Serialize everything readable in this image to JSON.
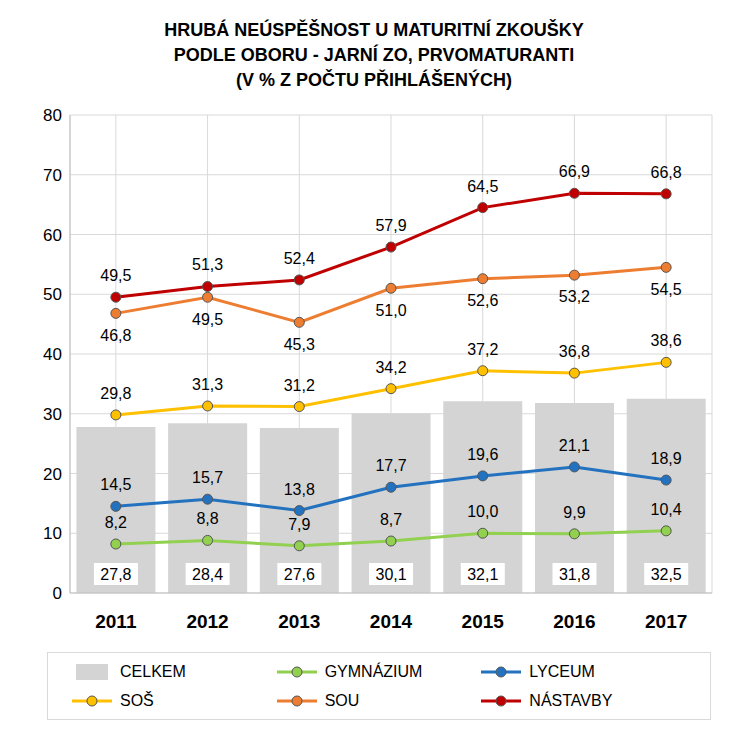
{
  "chart_data": {
    "type": "bar",
    "title": "HRUBÁ NEÚSPĚŠNOST U MATURITNÍ ZKOUŠKY\nPODLE OBORU - JARNÍ ZO, PRVOMATURANTI\n(V % Z POČTU PŘIHLÁŠENÝCH)",
    "categories": [
      "2011",
      "2012",
      "2013",
      "2014",
      "2015",
      "2016",
      "2017"
    ],
    "ylim": [
      0,
      80
    ],
    "yticks": [
      0,
      10,
      20,
      30,
      40,
      50,
      60,
      70,
      80
    ],
    "grid": true,
    "data_labels": true,
    "legend": "bottom",
    "series": [
      {
        "name": "CELKEM",
        "type": "bar",
        "color": "#d4d4d4",
        "values": [
          27.8,
          28.4,
          27.6,
          30.1,
          32.1,
          31.8,
          32.5
        ],
        "value_labels": [
          "27,8",
          "28,4",
          "27,6",
          "30,1",
          "32,1",
          "31,8",
          "32,5"
        ]
      },
      {
        "name": "GYMNÁZIUM",
        "type": "line",
        "marker": "circle",
        "color": "#92d050",
        "values": [
          8.2,
          8.8,
          7.9,
          8.7,
          10.0,
          9.9,
          10.4
        ],
        "value_labels": [
          "8,2",
          "8,8",
          "7,9",
          "8,7",
          "10,0",
          "9,9",
          "10,4"
        ]
      },
      {
        "name": "LYCEUM",
        "type": "line",
        "marker": "circle",
        "color": "#2272c0",
        "values": [
          14.5,
          15.7,
          13.8,
          17.7,
          19.6,
          21.1,
          18.9
        ],
        "value_labels": [
          "14,5",
          "15,7",
          "13,8",
          "17,7",
          "19,6",
          "21,1",
          "18,9"
        ]
      },
      {
        "name": "SOŠ",
        "type": "line",
        "marker": "circle",
        "color": "#ffc000",
        "values": [
          29.8,
          31.3,
          31.2,
          34.2,
          37.2,
          36.8,
          38.6
        ],
        "value_labels": [
          "29,8",
          "31,3",
          "31,2",
          "34,2",
          "37,2",
          "36,8",
          "38,6"
        ]
      },
      {
        "name": "SOU",
        "type": "line",
        "marker": "circle",
        "color": "#ed7d31",
        "values": [
          46.8,
          49.5,
          45.3,
          51.0,
          52.6,
          53.2,
          54.5
        ],
        "value_labels": [
          "46,8",
          "49,5",
          "45,3",
          "51,0",
          "52,6",
          "53,2",
          "54,5"
        ]
      },
      {
        "name": "NÁSTAVBY",
        "type": "line",
        "marker": "circle",
        "color": "#c00000",
        "values": [
          49.5,
          51.3,
          52.4,
          57.9,
          64.5,
          66.9,
          66.8
        ],
        "value_labels": [
          "49,5",
          "51,3",
          "52,4",
          "57,9",
          "64,5",
          "66,9",
          "66,8"
        ]
      }
    ]
  }
}
